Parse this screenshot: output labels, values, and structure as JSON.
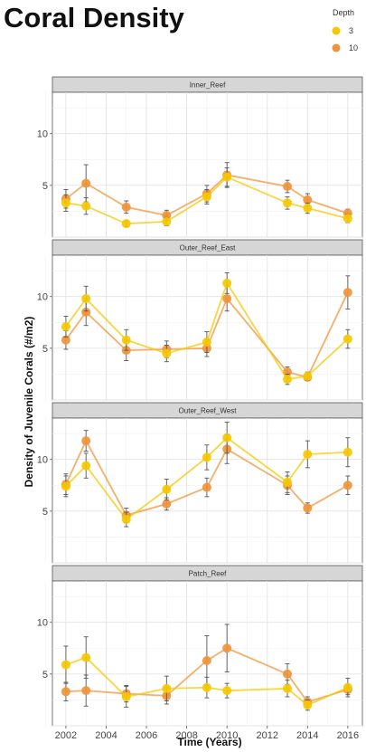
{
  "title": "Coral Density",
  "chart_data": {
    "type": "line",
    "title": "Coral Density",
    "xlabel": "Time (Years)",
    "ylabel": "Density of Juvenile Corals (#/m2)",
    "x_ticks": [
      2002,
      2004,
      2006,
      2008,
      2010,
      2012,
      2014,
      2016
    ],
    "y_ticks": [
      5,
      10
    ],
    "xlim": [
      2001.6,
      2016.5
    ],
    "ylim": [
      0,
      14
    ],
    "grid": true,
    "legend": {
      "title": "Depth",
      "position": "top-right",
      "entries": [
        {
          "label": "3",
          "color": "#f5c800"
        },
        {
          "label": "10",
          "color": "#f0943a"
        }
      ]
    },
    "facets": [
      {
        "label": "Inner_Reef",
        "series": [
          {
            "name": "3",
            "color": "#f5c800",
            "x": [
              2002,
              2003,
              2005,
              2007,
              2009,
              2010,
              2013,
              2014,
              2016
            ],
            "y": [
              3.3,
              3.0,
              1.3,
              1.5,
              3.9,
              5.8,
              3.3,
              2.8,
              1.8
            ],
            "err": [
              0.8,
              0.8,
              0.3,
              0.4,
              0.7,
              0.9,
              0.6,
              0.5,
              0.4
            ]
          },
          {
            "name": "10",
            "color": "#f0943a",
            "x": [
              2002,
              2003,
              2005,
              2007,
              2009,
              2010,
              2013,
              2014,
              2016
            ],
            "y": [
              3.7,
              5.2,
              2.9,
              2.1,
              4.2,
              6.0,
              4.9,
              3.6,
              2.3
            ],
            "err": [
              0.9,
              1.8,
              0.6,
              0.5,
              0.8,
              1.2,
              0.6,
              0.6,
              0.4
            ]
          }
        ]
      },
      {
        "label": "Outer_Reef_East",
        "series": [
          {
            "name": "3",
            "color": "#f5c800",
            "x": [
              2002,
              2003,
              2005,
              2007,
              2009,
              2010,
              2013,
              2014,
              2016
            ],
            "y": [
              7.1,
              9.8,
              5.8,
              4.5,
              5.6,
              11.3,
              2.0,
              2.3,
              5.9
            ],
            "err": [
              1.0,
              1.2,
              1.0,
              0.8,
              1.0,
              1.0,
              0.5,
              0.4,
              0.9
            ]
          },
          {
            "name": "10",
            "color": "#f0943a",
            "x": [
              2002,
              2003,
              2005,
              2007,
              2009,
              2010,
              2013,
              2014,
              2016
            ],
            "y": [
              5.8,
              8.5,
              4.8,
              4.9,
              5.0,
              9.8,
              2.7,
              2.2,
              10.4
            ],
            "err": [
              0.9,
              1.3,
              1.0,
              0.8,
              0.8,
              1.2,
              0.5,
              0.3,
              1.6
            ]
          }
        ]
      },
      {
        "label": "Outer_Reef_West",
        "series": [
          {
            "name": "3",
            "color": "#f5c800",
            "x": [
              2002,
              2003,
              2005,
              2007,
              2009,
              2010,
              2013,
              2014,
              2016
            ],
            "y": [
              7.4,
              9.4,
              4.2,
              7.1,
              10.2,
              12.1,
              7.8,
              10.5,
              10.7
            ],
            "err": [
              1.0,
              1.2,
              0.7,
              1.0,
              1.2,
              1.5,
              1.0,
              1.3,
              1.4
            ]
          },
          {
            "name": "10",
            "color": "#f0943a",
            "x": [
              2002,
              2003,
              2005,
              2007,
              2009,
              2010,
              2013,
              2014,
              2016
            ],
            "y": [
              7.6,
              11.8,
              4.6,
              5.7,
              7.3,
              11.0,
              7.5,
              5.3,
              7.5
            ],
            "err": [
              1.0,
              1.0,
              0.7,
              0.6,
              0.9,
              1.4,
              0.9,
              0.5,
              0.9
            ]
          }
        ]
      },
      {
        "label": "Patch_Reef",
        "series": [
          {
            "name": "3",
            "color": "#f5c800",
            "x": [
              2002,
              2003,
              2005,
              2007,
              2009,
              2010,
              2013,
              2014,
              2016
            ],
            "y": [
              5.9,
              6.6,
              2.8,
              3.6,
              3.7,
              3.4,
              3.6,
              2.0,
              3.7
            ],
            "err": [
              1.8,
              2.0,
              1.0,
              1.2,
              1.0,
              0.7,
              0.8,
              0.5,
              0.9
            ]
          },
          {
            "name": "10",
            "color": "#f0943a",
            "x": [
              2002,
              2003,
              2005,
              2007,
              2009,
              2010,
              2013,
              2014,
              2016
            ],
            "y": [
              3.3,
              3.4,
              3.1,
              2.9,
              6.3,
              7.5,
              5.0,
              2.3,
              3.5
            ],
            "err": [
              0.9,
              1.5,
              0.8,
              0.8,
              2.4,
              2.3,
              1.0,
              0.5,
              0.5
            ]
          }
        ]
      }
    ]
  }
}
